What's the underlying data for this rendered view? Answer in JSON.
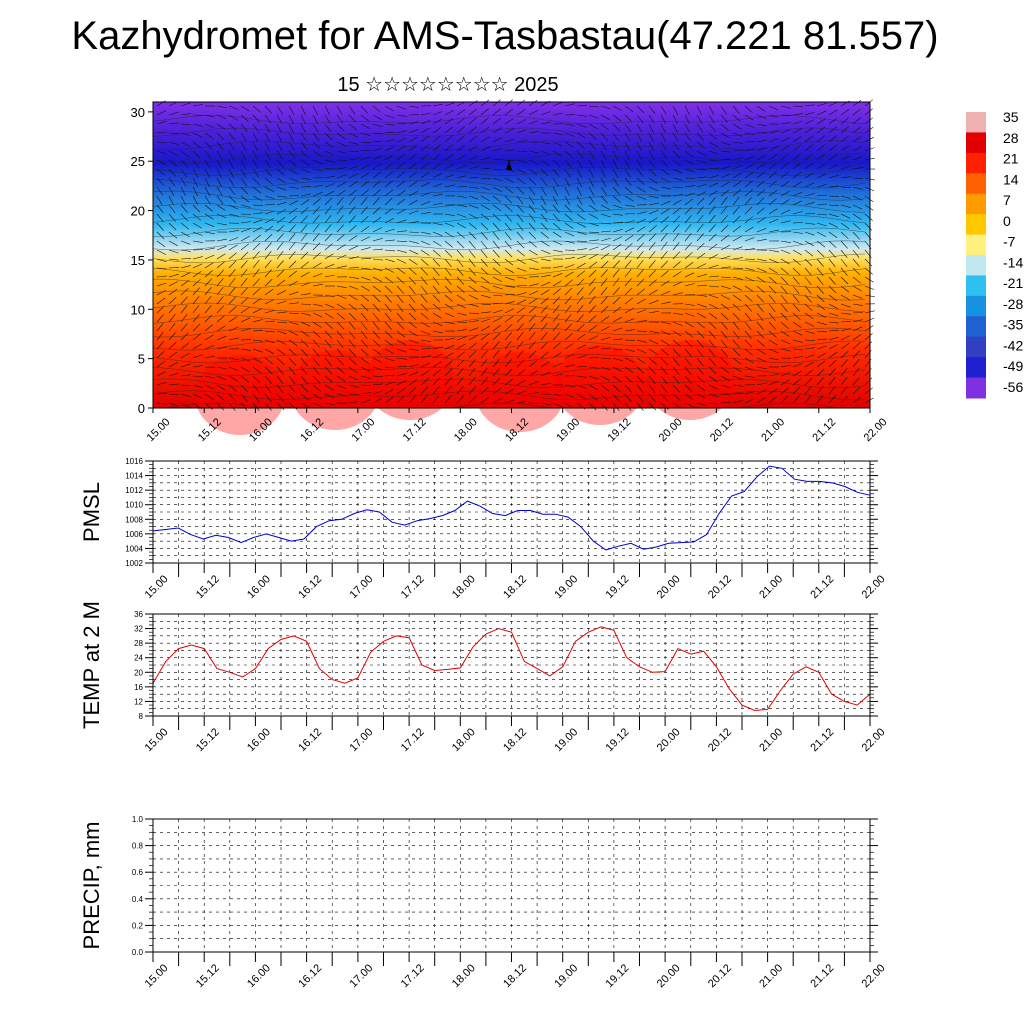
{
  "title": "Kazhydromet for AMS-Tasbastau(47.221 81.557)",
  "subtitle": "15 ☆☆☆☆☆☆☆☆ 2025",
  "colors": {
    "pmsl_line": "#0000cc",
    "temp_line": "#e00000",
    "precip_line": "#006400",
    "grid": "#000000"
  },
  "chart_data": [
    {
      "type": "heatmap",
      "name": "upper-air temperature cross-section with wind barbs",
      "ylim": [
        0,
        31
      ],
      "yticks": [
        0,
        5,
        10,
        15,
        20,
        25,
        30
      ],
      "xticks": [
        "15.00",
        "15.12",
        "16.00",
        "16.12",
        "17.00",
        "17.12",
        "18.00",
        "18.12",
        "19.00",
        "19.12",
        "20.00",
        "20.12",
        "21.00",
        "21.12",
        "22.00"
      ],
      "colorbar_labels": [
        "35",
        "28",
        "21",
        "14",
        "7",
        "0",
        "-7",
        "-14",
        "-21",
        "-28",
        "-35",
        "-42",
        "-49",
        "-56"
      ],
      "colorbar_colors": [
        "#f0b0b0",
        "#e00000",
        "#ff2000",
        "#ff6000",
        "#ff9a00",
        "#ffc800",
        "#fff080",
        "#c0e8f0",
        "#30c0f0",
        "#1890e0",
        "#2060d0",
        "#3040c0",
        "#2020d0",
        "#8030e0"
      ],
      "grid": false
    },
    {
      "type": "line",
      "ylabel": "PMSL",
      "ylim": [
        1002,
        1016
      ],
      "yticks": [
        1002,
        1004,
        1006,
        1008,
        1010,
        1012,
        1014,
        1016
      ],
      "xticks": [
        "15.00",
        "15.12",
        "16.00",
        "16.12",
        "17.00",
        "17.12",
        "18.00",
        "18.12",
        "19.00",
        "19.12",
        "20.00",
        "20.12",
        "21.00",
        "21.12",
        "22.00"
      ],
      "grid": true,
      "series": [
        {
          "values": [
            1006.4,
            1006.6,
            1006.8,
            1005.9,
            1005.3,
            1005.8,
            1005.5,
            1004.8,
            1005.5,
            1006.0,
            1005.5,
            1005.0,
            1005.3,
            1007.0,
            1007.8,
            1008.0,
            1008.8,
            1009.3,
            1009.0,
            1007.6,
            1007.2,
            1007.8,
            1008.1,
            1008.5,
            1009.2,
            1010.5,
            1009.8,
            1008.8,
            1008.5,
            1009.2,
            1009.2,
            1008.7,
            1008.7,
            1008.3,
            1007.0,
            1005.0,
            1003.8,
            1004.3,
            1004.7,
            1003.9,
            1004.2,
            1004.7,
            1004.8,
            1004.9,
            1005.9,
            1008.8,
            1011.2,
            1011.8,
            1013.8,
            1015.3,
            1015.0,
            1013.5,
            1013.2,
            1013.2,
            1013.0,
            1012.5,
            1011.7,
            1011.3
          ]
        }
      ]
    },
    {
      "type": "line",
      "ylabel": "TEMP at 2 M",
      "ylim": [
        8,
        36
      ],
      "yticks": [
        8,
        12,
        16,
        20,
        24,
        28,
        32,
        36
      ],
      "xticks": [
        "15.00",
        "15.12",
        "16.00",
        "16.12",
        "17.00",
        "17.12",
        "18.00",
        "18.12",
        "19.00",
        "19.12",
        "20.00",
        "20.12",
        "21.00",
        "21.12",
        "22.00"
      ],
      "grid": true,
      "series": [
        {
          "values": [
            17,
            23,
            26.5,
            27.5,
            26.5,
            21,
            20,
            18.7,
            21,
            26.5,
            29,
            30,
            28.5,
            21,
            18,
            17,
            18.5,
            25.5,
            28.5,
            30,
            29.5,
            22,
            20.5,
            20.8,
            21.2,
            27,
            30.5,
            32,
            31,
            23,
            21,
            19,
            21.5,
            28.5,
            31,
            32.5,
            31.5,
            24,
            21.5,
            20,
            20.2,
            26.5,
            25,
            25.8,
            21.5,
            15.5,
            11,
            9.5,
            9.8,
            15,
            19.5,
            21.5,
            20,
            14,
            12,
            11,
            14
          ]
        }
      ]
    },
    {
      "type": "line",
      "ylabel": "PRECIP, mm",
      "ylim": [
        0.0,
        1.0
      ],
      "yticks": [
        "0.0",
        "0.2",
        "0.4",
        "0.6",
        "0.8",
        "1.0"
      ],
      "xticks": [
        "15.00",
        "15.12",
        "16.00",
        "16.12",
        "17.00",
        "17.12",
        "18.00",
        "18.12",
        "19.00",
        "19.12",
        "20.00",
        "20.12",
        "21.00",
        "21.12",
        "22.00"
      ],
      "grid": true,
      "series": [
        {
          "values": [
            0,
            0,
            0,
            0,
            0,
            0,
            0,
            0,
            0,
            0,
            0,
            0,
            0,
            0,
            0,
            0,
            0,
            0,
            0,
            0,
            0,
            0,
            0,
            0,
            0,
            0,
            0,
            0,
            0,
            0,
            0,
            0,
            0,
            0,
            0,
            0,
            0,
            0,
            0,
            0,
            0,
            0,
            0,
            0,
            0,
            0,
            0,
            0,
            0,
            0,
            0,
            0,
            0,
            0,
            0,
            0,
            0,
            0,
            0,
            0,
            0,
            0,
            0,
            0,
            0,
            0,
            0,
            0,
            0,
            0,
            0,
            0,
            0,
            0,
            0,
            0,
            0,
            0,
            0,
            0,
            0,
            0,
            0,
            0,
            0
          ]
        }
      ]
    }
  ]
}
